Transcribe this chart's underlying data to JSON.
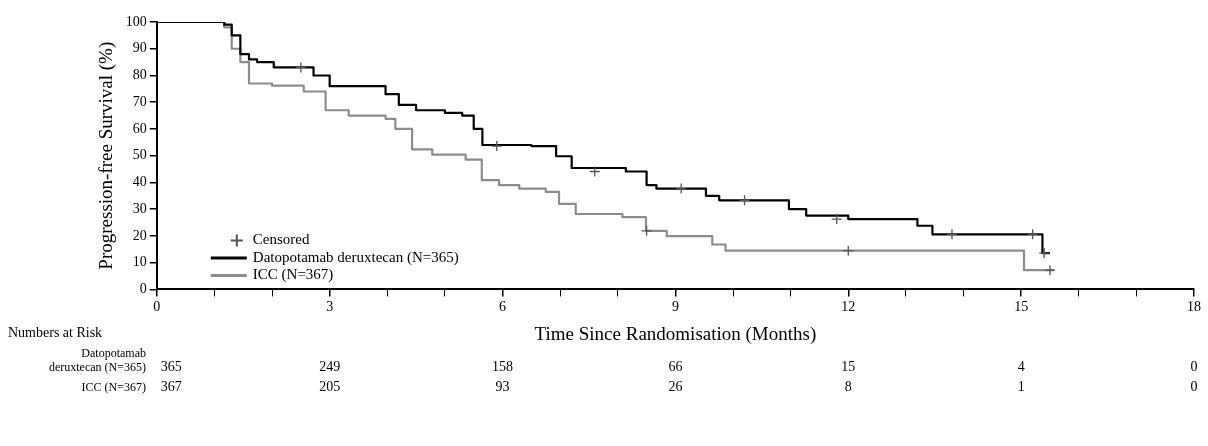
{
  "chart_data": {
    "type": "step",
    "xlabel": "Time Since Randomisation (Months)",
    "ylabel": "Progression-free Survival (%)",
    "xlim": [
      0,
      18
    ],
    "xticks": [
      0,
      {
        "value": 1,
        "label": null
      },
      {
        "value": 2,
        "label": null
      },
      3,
      {
        "value": 4,
        "label": null
      },
      {
        "value": 5,
        "label": null
      },
      6,
      {
        "value": 7,
        "label": null
      },
      {
        "value": 8,
        "label": null
      },
      9,
      {
        "value": 10,
        "label": null
      },
      {
        "value": 11,
        "label": null
      },
      12,
      {
        "value": 13,
        "label": null
      },
      {
        "value": 14,
        "label": null
      },
      15,
      {
        "value": 16,
        "label": null
      },
      {
        "value": 17,
        "label": null
      },
      18
    ],
    "ylim": [
      0,
      100
    ],
    "yticks": [
      0,
      10,
      20,
      30,
      40,
      50,
      60,
      70,
      80,
      90,
      100
    ],
    "grid": false,
    "legend": "bottom left",
    "series": [
      {
        "name": "Censored",
        "type": "scatter",
        "marker": "cross",
        "color": "#555555",
        "x": [
          2.5,
          5.9,
          7.6,
          9.1,
          10.2,
          11.8,
          13.8,
          15.2,
          15.4,
          8.5,
          12.0,
          15.5
        ],
        "values": [
          83,
          53.6,
          44.1,
          37.7,
          33.3,
          26.3,
          20.6,
          20.6,
          13.6,
          21.9,
          14.5,
          7.2
        ]
      },
      {
        "name": "Datopotamab deruxtecan (N=365)",
        "color": "#000000",
        "x": [
          0,
          1.17,
          1.3,
          1.45,
          1.6,
          1.74,
          2.03,
          2.72,
          3.0,
          3.97,
          4.2,
          4.5,
          5.0,
          5.3,
          5.5,
          5.65,
          6.5,
          6.93,
          7.2,
          8.14,
          8.5,
          8.67,
          9.53,
          9.76,
          10.97,
          11.27,
          12.0,
          13.2,
          13.46,
          15.37,
          15.5
        ],
        "values": [
          100,
          99,
          95,
          88,
          86,
          85,
          83,
          80,
          76,
          73,
          69,
          67,
          66,
          65,
          60,
          54,
          53.6,
          49.8,
          45.4,
          44.1,
          39,
          37.7,
          35,
          33.3,
          30,
          27.6,
          26.3,
          23.8,
          20.6,
          13.6,
          13.6
        ]
      },
      {
        "name": "ICC (N=367)",
        "color": "#8c8c8c",
        "x": [
          0,
          1.17,
          1.3,
          1.45,
          1.6,
          2.0,
          2.55,
          2.93,
          3.33,
          3.97,
          4.14,
          4.43,
          4.78,
          5.36,
          5.64,
          5.94,
          6.29,
          6.75,
          6.98,
          7.27,
          8.08,
          8.49,
          8.85,
          9.64,
          9.87,
          15.05,
          15.57
        ],
        "values": [
          100,
          98,
          90,
          85,
          77,
          76.2,
          74,
          67,
          65,
          63.8,
          60,
          52.4,
          50.4,
          48.5,
          40.9,
          39,
          37.7,
          36.5,
          32,
          28.2,
          27,
          21.9,
          19.9,
          16.8,
          14.5,
          7.2,
          7.2
        ]
      }
    ],
    "annotations": [
      "Numbers at Risk",
      "Datopotamab deruxtecan (N=365)",
      "365",
      "249",
      "158",
      "66",
      "15",
      "4",
      "0",
      "ICC (N=367)",
      "367",
      "205",
      "93",
      "26",
      "8",
      "1",
      "0"
    ]
  }
}
